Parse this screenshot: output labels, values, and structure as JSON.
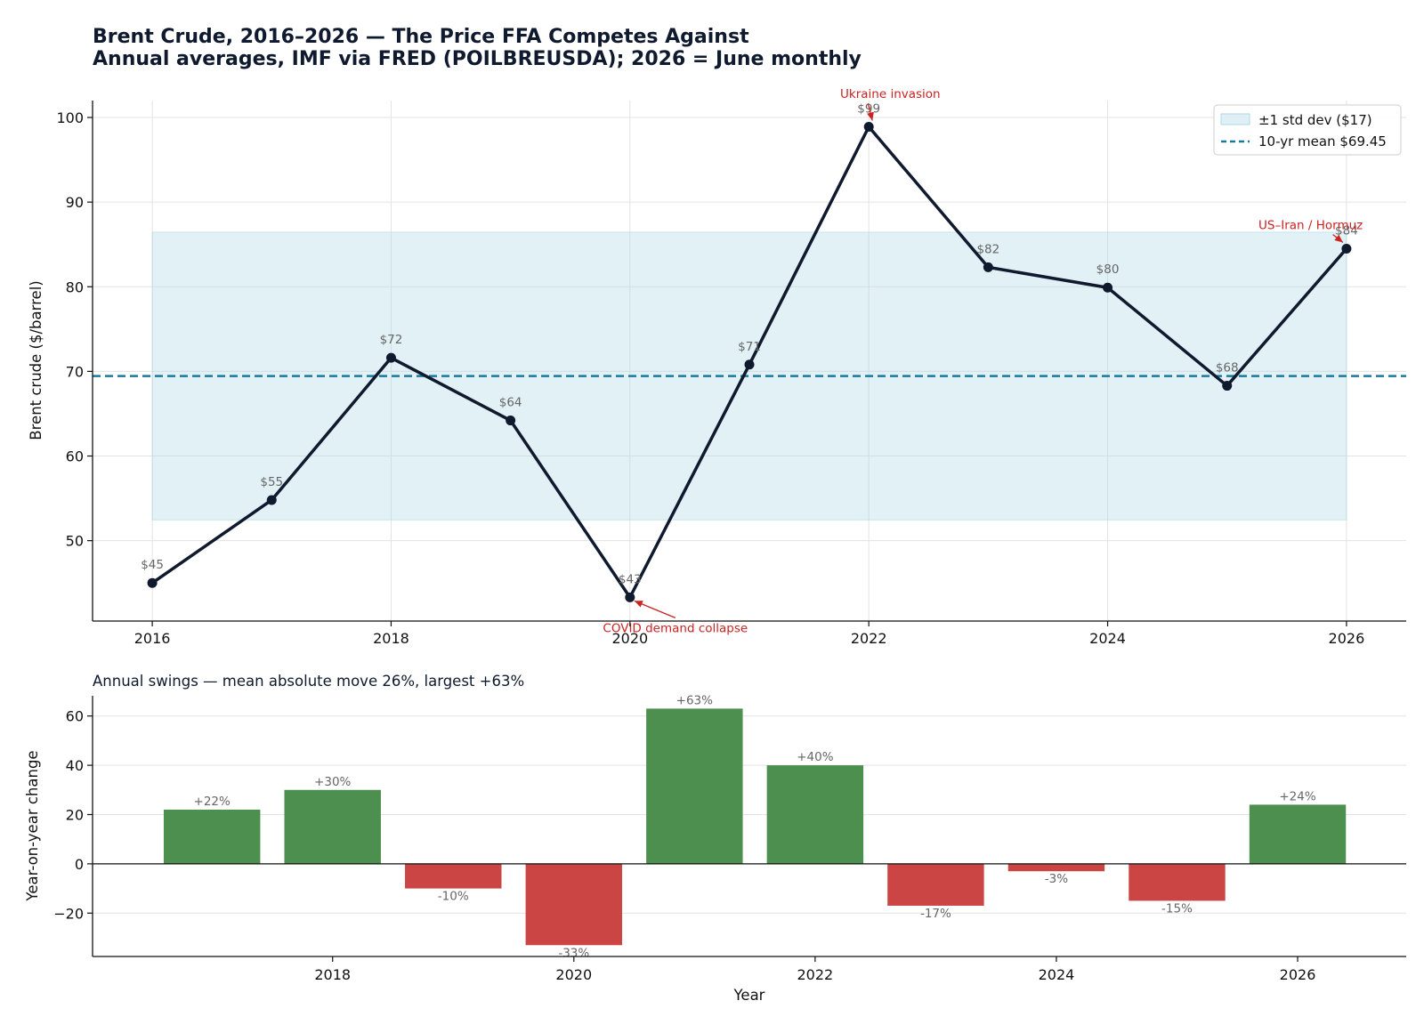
{
  "colors": {
    "line": "#0f1a2e",
    "mean_line": "#1a7a9e",
    "band": "#add8e6",
    "positive_bar": "#4d8f4f",
    "negative_bar": "#cc4545",
    "annotation": "#cc2222",
    "grid": "#e3e3e3"
  },
  "chart_data": [
    {
      "type": "line",
      "title": "Brent Crude, 2016–2026 — The Price FFA Competes Against",
      "subtitle": "Annual averages, IMF via FRED (POILBREUSDA); 2026 = June monthly",
      "xlabel": "",
      "ylabel": "Brent crude ($/barrel)",
      "x": [
        2016,
        2017,
        2018,
        2019,
        2020,
        2021,
        2022,
        2023,
        2024,
        2025,
        2026
      ],
      "values": [
        45.0,
        54.8,
        71.6,
        64.2,
        43.3,
        70.8,
        98.9,
        82.3,
        79.9,
        68.3,
        84.5
      ],
      "data_labels": [
        "$45",
        "$55",
        "$72",
        "$64",
        "$43",
        "$71",
        "$99",
        "$82",
        "$80",
        "$68",
        "$84"
      ],
      "xlim": [
        2015.5,
        2026.5
      ],
      "ylim": [
        40.5,
        102
      ],
      "x_ticks": [
        2016,
        2018,
        2020,
        2022,
        2024,
        2026
      ],
      "x_tick_labels": [
        "2016",
        "2018",
        "2020",
        "2022",
        "2024",
        "2026"
      ],
      "y_ticks": [
        50,
        60,
        70,
        80,
        90,
        100
      ],
      "y_tick_labels": [
        "50",
        "60",
        "70",
        "80",
        "90",
        "100"
      ],
      "mean": 69.45,
      "band": [
        52.45,
        86.45
      ],
      "grid": true,
      "legend_position": "top-right",
      "legend": [
        "±1 std dev ($17)",
        "10-yr mean $69.45"
      ],
      "annotations": [
        {
          "text": "Ukraine invasion",
          "x": 2022,
          "y": 98.9,
          "text_x": 2022.18,
          "text_y": 102.3
        },
        {
          "text": "COVID demand collapse",
          "x": 2020,
          "y": 43.3,
          "text_x": 2020.38,
          "text_y": 39.2
        },
        {
          "text": "US–Iran / Hormuz",
          "x": 2026,
          "y": 84.5,
          "text_x": 2025.7,
          "text_y": 86.8
        }
      ]
    },
    {
      "type": "bar",
      "title": "Annual swings — mean absolute move 26%, largest +63%",
      "xlabel": "Year",
      "ylabel": "Year-on-year change",
      "x": [
        2017,
        2018,
        2019,
        2020,
        2021,
        2022,
        2023,
        2024,
        2025,
        2026
      ],
      "values": [
        22,
        30,
        -10,
        -33,
        63,
        40,
        -17,
        -3,
        -15,
        24
      ],
      "data_labels": [
        "+22%",
        "+30%",
        "-10%",
        "-33%",
        "+63%",
        "+40%",
        "-17%",
        "-3%",
        "-15%",
        "+24%"
      ],
      "xlim": [
        2016.01,
        2026.9
      ],
      "ylim": [
        -37.6,
        68.2
      ],
      "x_ticks": [
        2018,
        2020,
        2022,
        2024,
        2026
      ],
      "x_tick_labels": [
        "2018",
        "2020",
        "2022",
        "2024",
        "2026"
      ],
      "y_ticks": [
        -20,
        0,
        20,
        40,
        60
      ],
      "y_tick_labels": [
        "−20",
        "0",
        "20",
        "40",
        "60"
      ],
      "grid": true
    }
  ]
}
